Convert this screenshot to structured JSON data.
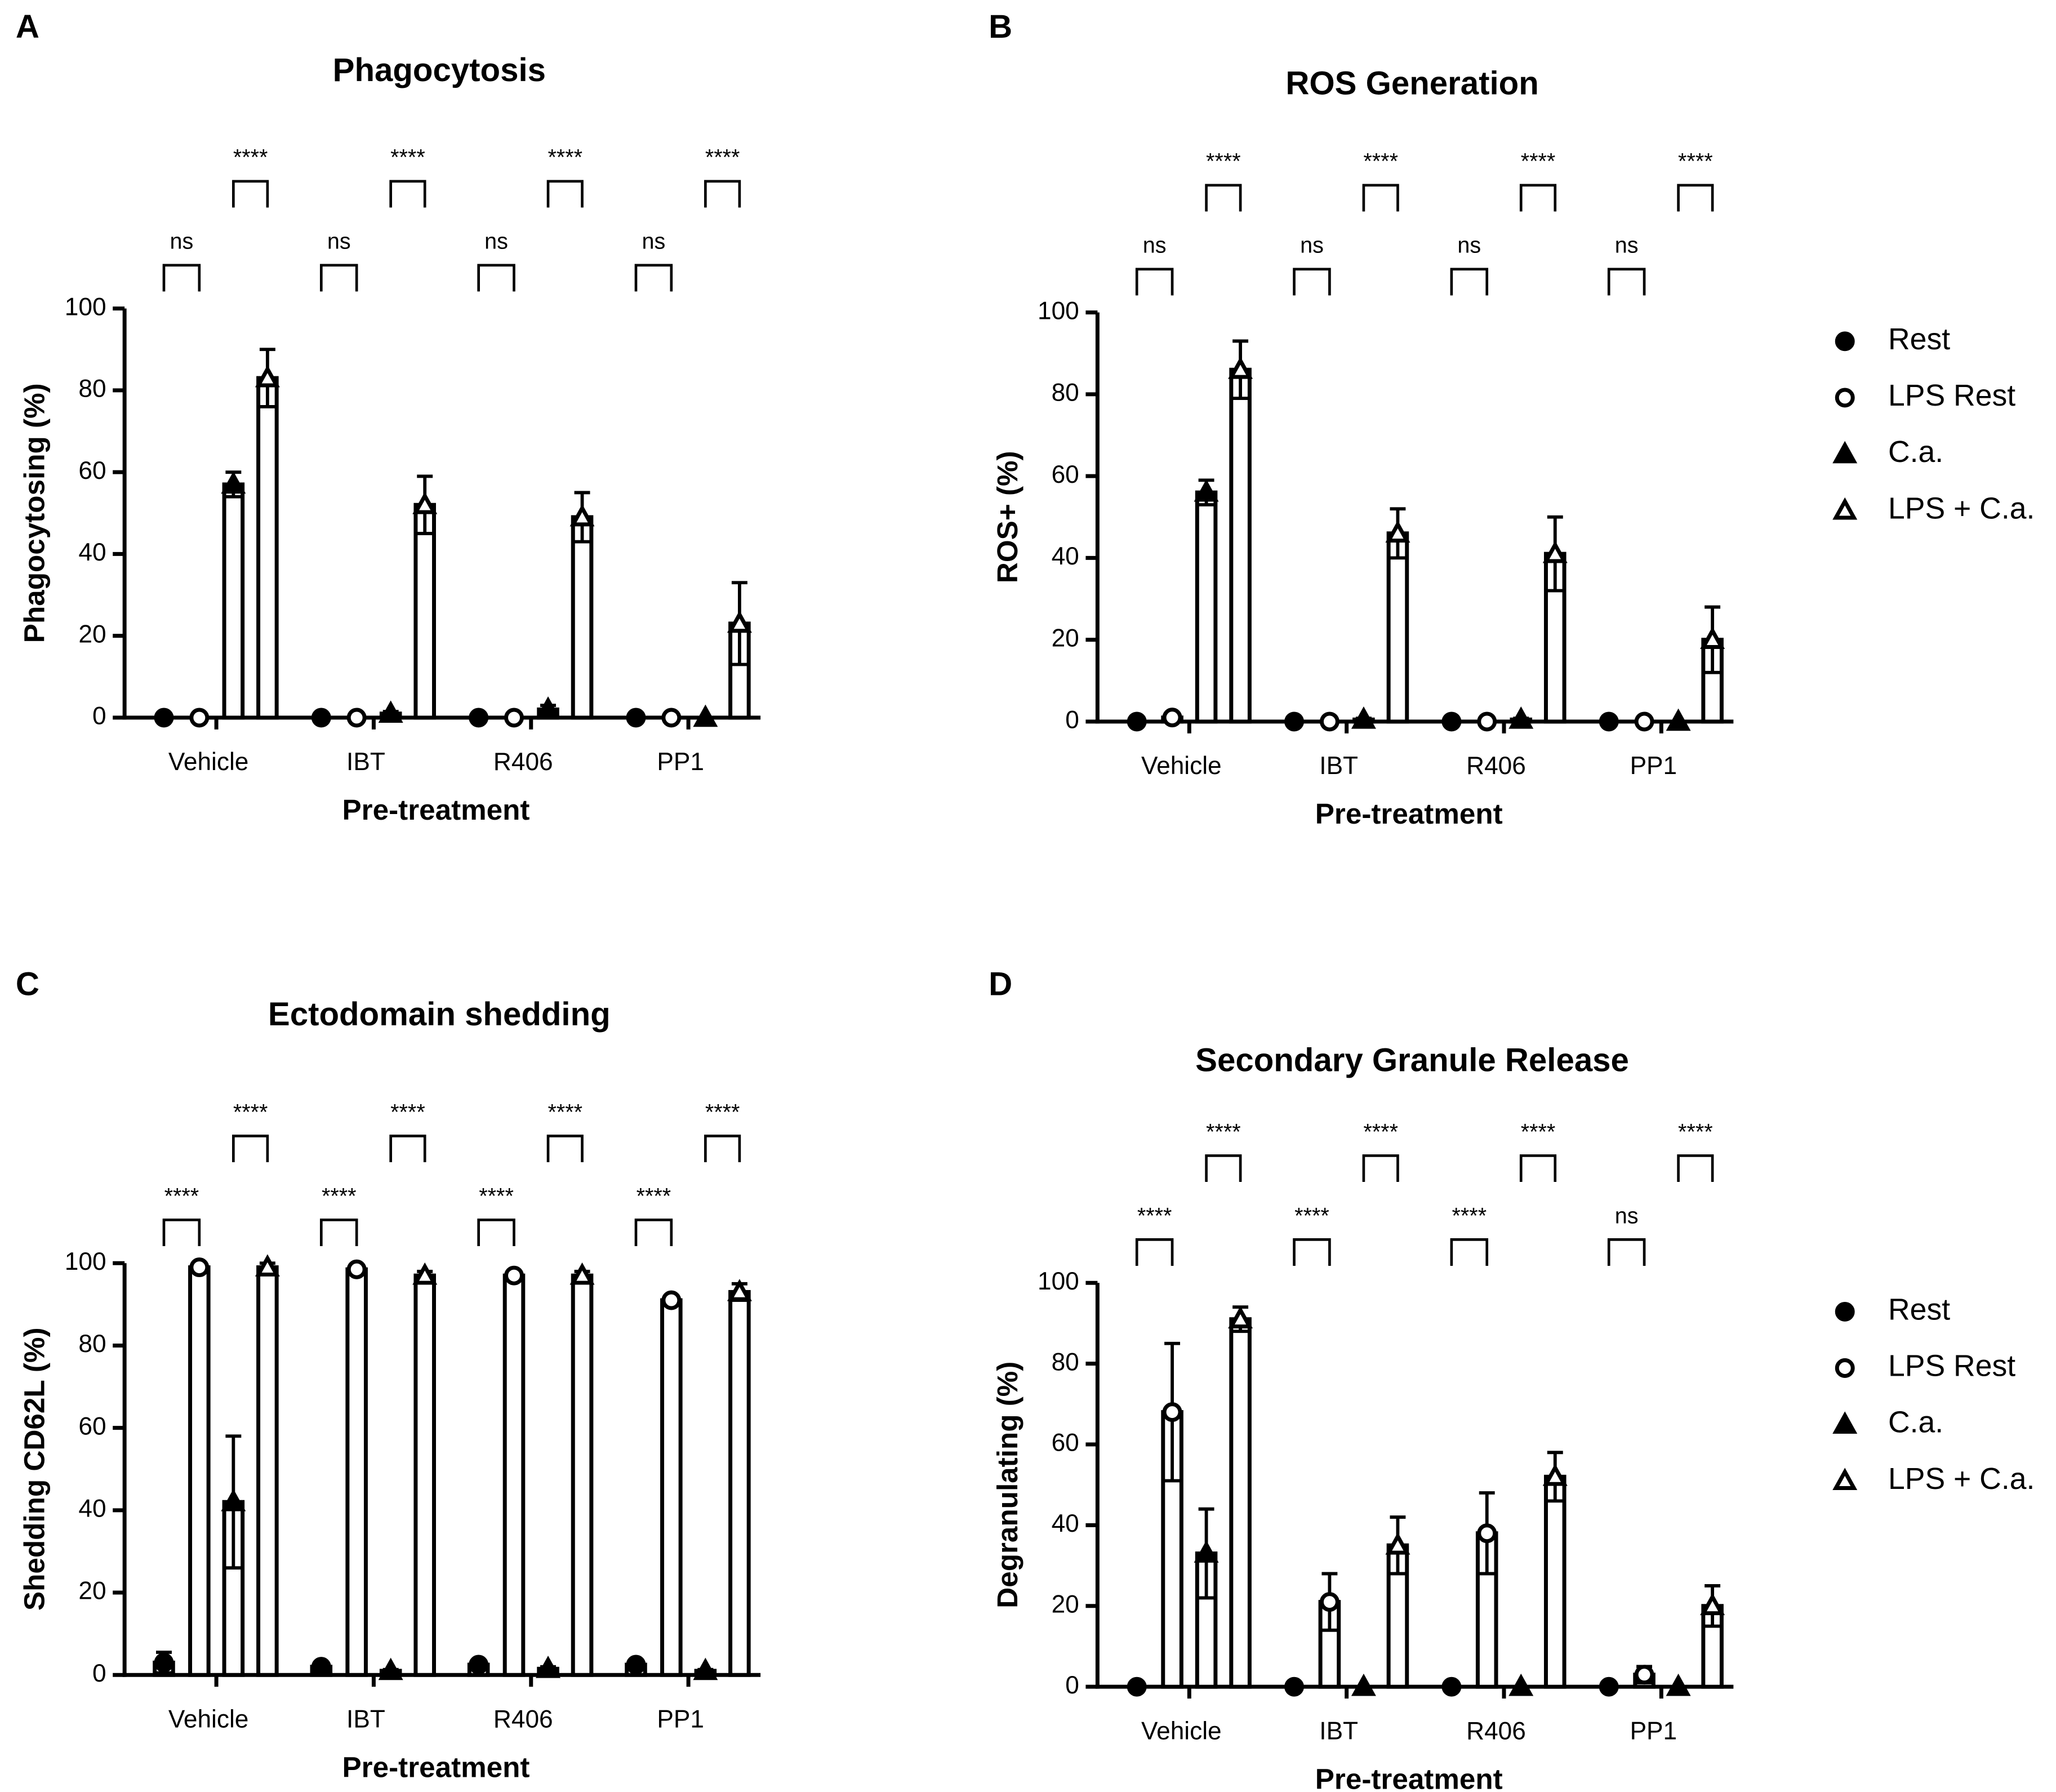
{
  "chart_data": [
    {
      "type": "bar",
      "panel": "A",
      "title": "Phagocytosis",
      "xlabel": "Pre-treatment",
      "ylabel": "Phagocytosing (%)",
      "categories": [
        "Vehicle",
        "IBT",
        "R406",
        "PP1"
      ],
      "ylim": [
        0,
        100
      ],
      "yticks": [
        0,
        20,
        40,
        60,
        80,
        100
      ],
      "legend": false,
      "series": [
        {
          "name": "Rest",
          "color": "#000000",
          "marker": "circle",
          "values": [
            0,
            0,
            0,
            0
          ],
          "errors": [
            0,
            0,
            0,
            0
          ]
        },
        {
          "name": "LPS Rest",
          "color": "#000000",
          "marker": "circle-open",
          "values": [
            0,
            0,
            0,
            0
          ],
          "errors": [
            0,
            0,
            0,
            0
          ]
        },
        {
          "name": "C.a.",
          "color": "#000000",
          "marker": "triangle",
          "values": [
            57,
            1,
            2,
            0
          ],
          "errors": [
            3,
            0.5,
            1,
            0
          ]
        },
        {
          "name": "LPS + C.a.",
          "color": "#000000",
          "marker": "triangle-open",
          "values": [
            83,
            52,
            49,
            23
          ],
          "errors": [
            7,
            7,
            6,
            10
          ]
        }
      ],
      "sig_low": [
        "ns",
        "ns",
        "ns",
        "ns"
      ],
      "sig_high": [
        "****",
        "****",
        "****",
        "****"
      ]
    },
    {
      "type": "bar",
      "panel": "B",
      "title": "ROS Generation",
      "xlabel": "Pre-treatment",
      "ylabel": "ROS+ (%)",
      "categories": [
        "Vehicle",
        "IBT",
        "R406",
        "PP1"
      ],
      "ylim": [
        0,
        100
      ],
      "yticks": [
        0,
        20,
        40,
        60,
        80,
        100
      ],
      "legend": true,
      "series": [
        {
          "name": "Rest",
          "color": "#000000",
          "marker": "circle",
          "values": [
            0,
            0,
            0,
            0
          ],
          "errors": [
            0,
            0,
            0,
            0
          ]
        },
        {
          "name": "LPS Rest",
          "color": "#000000",
          "marker": "circle-open",
          "values": [
            1,
            0,
            0,
            0
          ],
          "errors": [
            0.5,
            0,
            0,
            0
          ]
        },
        {
          "name": "C.a.",
          "color": "#000000",
          "marker": "triangle",
          "values": [
            56,
            0.5,
            0.5,
            0
          ],
          "errors": [
            3,
            0.3,
            0.3,
            0
          ]
        },
        {
          "name": "LPS + C.a.",
          "color": "#000000",
          "marker": "triangle-open",
          "values": [
            86,
            46,
            41,
            20
          ],
          "errors": [
            7,
            6,
            9,
            8
          ]
        }
      ],
      "sig_low": [
        "ns",
        "ns",
        "ns",
        "ns"
      ],
      "sig_high": [
        "****",
        "****",
        "****",
        "****"
      ]
    },
    {
      "type": "bar",
      "panel": "C",
      "title": "Ectodomain shedding",
      "xlabel": "Pre-treatment",
      "ylabel": "Shedding CD62L (%)",
      "categories": [
        "Vehicle",
        "IBT",
        "R406",
        "PP1"
      ],
      "ylim": [
        0,
        100
      ],
      "yticks": [
        0,
        20,
        40,
        60,
        80,
        100
      ],
      "legend": false,
      "series": [
        {
          "name": "Rest",
          "color": "#000000",
          "marker": "circle",
          "values": [
            3,
            2,
            2.5,
            2.5
          ],
          "errors": [
            2.5,
            0.3,
            0.5,
            0.5
          ]
        },
        {
          "name": "LPS Rest",
          "color": "#000000",
          "marker": "circle-open",
          "values": [
            99,
            98.5,
            97,
            91
          ],
          "errors": [
            0.5,
            0.5,
            1,
            1
          ]
        },
        {
          "name": "C.a.",
          "color": "#000000",
          "marker": "triangle",
          "values": [
            42,
            1,
            1.5,
            1
          ],
          "errors": [
            16,
            0.3,
            0.5,
            0.3
          ]
        },
        {
          "name": "LPS + C.a.",
          "color": "#000000",
          "marker": "triangle-open",
          "values": [
            99,
            97,
            97,
            93
          ],
          "errors": [
            1,
            1,
            1,
            2
          ]
        }
      ],
      "sig_low": [
        "****",
        "****",
        "****",
        "****"
      ],
      "sig_high": [
        "****",
        "****",
        "****",
        "****"
      ]
    },
    {
      "type": "bar",
      "panel": "D",
      "title": "Secondary Granule Release",
      "xlabel": "Pre-treatment",
      "ylabel": "Degranulating (%)",
      "categories": [
        "Vehicle",
        "IBT",
        "R406",
        "PP1"
      ],
      "ylim": [
        0,
        100
      ],
      "yticks": [
        0,
        20,
        40,
        60,
        80,
        100
      ],
      "legend": true,
      "series": [
        {
          "name": "Rest",
          "color": "#000000",
          "marker": "circle",
          "values": [
            0,
            0,
            0,
            0
          ],
          "errors": [
            0,
            0,
            0,
            0
          ]
        },
        {
          "name": "LPS Rest",
          "color": "#000000",
          "marker": "circle-open",
          "values": [
            68,
            21,
            38,
            3
          ],
          "errors": [
            17,
            7,
            10,
            2
          ]
        },
        {
          "name": "C.a.",
          "color": "#000000",
          "marker": "triangle",
          "values": [
            33,
            0,
            0,
            0
          ],
          "errors": [
            11,
            0,
            0,
            0
          ]
        },
        {
          "name": "LPS + C.a.",
          "color": "#000000",
          "marker": "triangle-open",
          "values": [
            91,
            35,
            52,
            20
          ],
          "errors": [
            3,
            7,
            6,
            5
          ]
        }
      ],
      "sig_low": [
        "****",
        "****",
        "****",
        "ns"
      ],
      "sig_high": [
        "****",
        "****",
        "****",
        "****"
      ]
    }
  ]
}
